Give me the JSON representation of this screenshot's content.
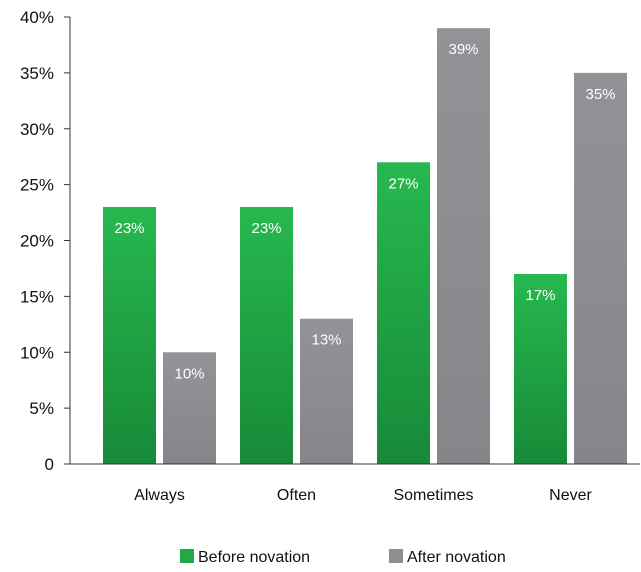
{
  "chart_data": {
    "type": "bar",
    "categories": [
      "Always",
      "Often",
      "Sometimes",
      "Never"
    ],
    "series": [
      {
        "name": "Before novation",
        "values": [
          23,
          23,
          27,
          17
        ],
        "data_labels": [
          "23%",
          "23%",
          "27%",
          "17%"
        ],
        "color": "#22a846"
      },
      {
        "name": "After novation",
        "values": [
          10,
          13,
          39,
          35
        ],
        "data_labels": [
          "10%",
          "13%",
          "39%",
          "35%"
        ],
        "color": "#8e8e92"
      }
    ],
    "ylim": [
      0,
      40
    ],
    "yticks": [
      0,
      5,
      10,
      15,
      20,
      25,
      30,
      35,
      40
    ],
    "ytick_labels": [
      "0",
      "5%",
      "10%",
      "15%",
      "20%",
      "25%",
      "30%",
      "35%",
      "40%"
    ],
    "title": "",
    "xlabel": "",
    "ylabel": "",
    "grid": false,
    "legend_position": "bottom-center"
  }
}
